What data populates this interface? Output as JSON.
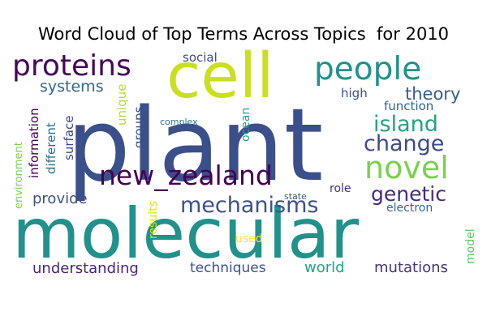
{
  "chart_data": {
    "type": "wordcloud",
    "title": "Word Cloud of Top Terms Across Topics  for 2010",
    "colormap": "viridis",
    "background": "#ffffff",
    "words": [
      {
        "text": "plant",
        "color": "#3b4f8a"
      },
      {
        "text": "molecular",
        "color": "#21918c"
      },
      {
        "text": "cell",
        "color": "#c8e020"
      },
      {
        "text": "new_zealand",
        "color": "#440154"
      },
      {
        "text": "proteins",
        "color": "#46075a"
      },
      {
        "text": "people",
        "color": "#21918c"
      },
      {
        "text": "novel",
        "color": "#7ad151"
      },
      {
        "text": "mechanisms",
        "color": "#3b528b"
      },
      {
        "text": "change",
        "color": "#3e4a89"
      },
      {
        "text": "island",
        "color": "#20a486"
      },
      {
        "text": "genetic",
        "color": "#472c7a"
      },
      {
        "text": "theory",
        "color": "#34608d"
      },
      {
        "text": "systems",
        "color": "#31688e"
      },
      {
        "text": "provide",
        "color": "#3b528b"
      },
      {
        "text": "social",
        "color": "#3e4a89"
      },
      {
        "text": "function",
        "color": "#31688e"
      },
      {
        "text": "high",
        "color": "#3b528b"
      },
      {
        "text": "information",
        "color": "#440154"
      },
      {
        "text": "different",
        "color": "#2c728e"
      },
      {
        "text": "surface",
        "color": "#3e4a89"
      },
      {
        "text": "environment",
        "color": "#7ad151"
      },
      {
        "text": "unique",
        "color": "#b5de2b"
      },
      {
        "text": "groups",
        "color": "#3b528b"
      },
      {
        "text": "ocean",
        "color": "#20a486"
      },
      {
        "text": "complex",
        "color": "#2a788e"
      },
      {
        "text": "role",
        "color": "#46337e"
      },
      {
        "text": "state",
        "color": "#38598c"
      },
      {
        "text": "electron",
        "color": "#31688e"
      },
      {
        "text": "results",
        "color": "#dde318"
      },
      {
        "text": "used",
        "color": "#fde725"
      },
      {
        "text": "model",
        "color": "#5ec962"
      },
      {
        "text": "understanding",
        "color": "#482677"
      },
      {
        "text": "techniques",
        "color": "#3b528b"
      },
      {
        "text": "world",
        "color": "#20a486"
      },
      {
        "text": "mutations",
        "color": "#46337e"
      }
    ]
  }
}
